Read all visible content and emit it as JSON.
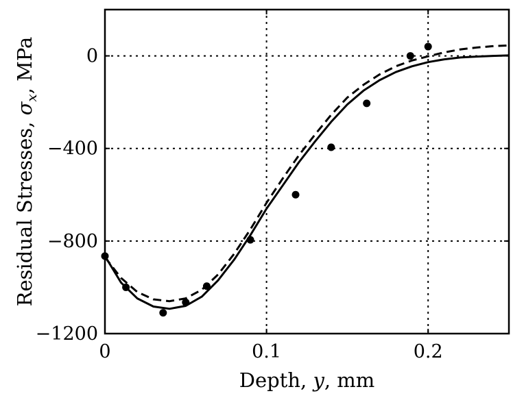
{
  "chart_data": {
    "type": "line",
    "xlabel": {
      "prefix": "Depth, ",
      "var": "y",
      "suffix": ", mm"
    },
    "ylabel": {
      "prefix": "Residual Stresses, ",
      "var": "σ",
      "sub": "x",
      "suffix": ", MPa"
    },
    "xlim": [
      0,
      0.25
    ],
    "ylim": [
      -1200,
      200
    ],
    "x_ticks": [
      0,
      0.1,
      0.2
    ],
    "x_tick_labels": [
      "0",
      "0.1",
      "0.2"
    ],
    "y_ticks": [
      0,
      -400,
      -800,
      -1200
    ],
    "y_tick_labels": [
      "0",
      "−400",
      "−800",
      "−1200"
    ],
    "grid": "dotted at major ticks",
    "series": [
      {
        "style": "solid",
        "x": [
          0,
          0.01,
          0.02,
          0.03,
          0.04,
          0.05,
          0.06,
          0.07,
          0.08,
          0.09,
          0.1,
          0.11,
          0.12,
          0.13,
          0.14,
          0.15,
          0.16,
          0.17,
          0.18,
          0.19,
          0.2,
          0.21,
          0.22,
          0.23,
          0.24,
          0.25
        ],
        "y": [
          -865,
          -980,
          -1048,
          -1083,
          -1093,
          -1080,
          -1040,
          -970,
          -880,
          -775,
          -660,
          -560,
          -460,
          -370,
          -285,
          -210,
          -150,
          -105,
          -70,
          -45,
          -27,
          -15,
          -7,
          -3,
          0,
          2
        ]
      },
      {
        "style": "dashed",
        "x": [
          0,
          0.01,
          0.02,
          0.03,
          0.04,
          0.05,
          0.06,
          0.07,
          0.08,
          0.09,
          0.1,
          0.11,
          0.12,
          0.13,
          0.14,
          0.15,
          0.16,
          0.17,
          0.18,
          0.19,
          0.2,
          0.21,
          0.22,
          0.23,
          0.24,
          0.25
        ],
        "y": [
          -870,
          -960,
          -1020,
          -1052,
          -1060,
          -1048,
          -1010,
          -945,
          -855,
          -750,
          -635,
          -530,
          -430,
          -340,
          -255,
          -180,
          -125,
          -80,
          -45,
          -20,
          -2,
          15,
          28,
          36,
          42,
          45
        ]
      },
      {
        "style": "markers",
        "x": [
          0,
          0.013,
          0.036,
          0.05,
          0.063,
          0.09,
          0.118,
          0.14,
          0.162,
          0.189,
          0.2
        ],
        "y": [
          -865,
          -1000,
          -1110,
          -1065,
          -995,
          -795,
          -600,
          -395,
          -205,
          0,
          40
        ]
      }
    ]
  }
}
